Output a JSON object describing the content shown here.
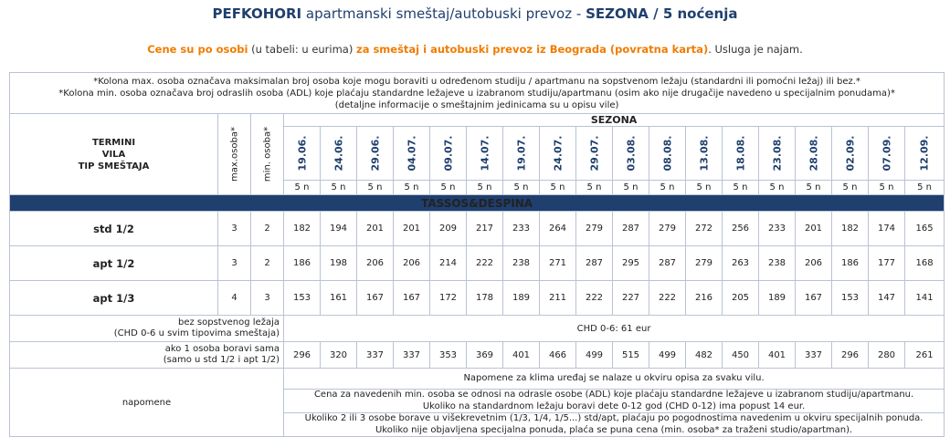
{
  "header": {
    "title_strong": "PEFKOHORI",
    "title_mid": " apartmanski smeštaj/autobuski prevoz - ",
    "title_season": "SEZONA / 5 noćenja",
    "subtitle_part1": "Cene su po osobi",
    "subtitle_part2": " (u tabeli: u eurima) ",
    "subtitle_part3": "za smeštaj i autobuski prevoz iz Beograda (povratna karta)",
    "subtitle_part4": ". Usluga je najam."
  },
  "top_notes": [
    "*Kolona max. osoba označava maksimalan broj osoba koje mogu boraviti u određenom studiju / apartmanu na sopstvenom ležaju (standardni ili pomoćni ležaj) ili bez.*",
    "*Kolona min. osoba označava broj odraslih osoba (ADL) koje plaćaju standardne ležajeve u izabranom studiju/apartmanu (osim ako nije drugačije navedeno u specijalnim ponudama)*",
    "(detaljne informacije o smeštajnim jedinicama su u opisu vile)"
  ],
  "table_header": {
    "label_line1": "TERMINI",
    "label_line2": "VILA",
    "label_line3": "TIP SMEŠTAJA",
    "max_col": "max.osoba*",
    "min_col": "min. osoba*",
    "season": "SEZONA",
    "dates": [
      "19.06.",
      "24.06.",
      "29.06.",
      "04.07.",
      "09.07.",
      "14.07.",
      "19.07.",
      "24.07.",
      "29.07.",
      "03.08.",
      "08.08.",
      "13.08.",
      "18.08.",
      "23.08.",
      "28.08.",
      "02.09.",
      "07.09.",
      "12.09."
    ],
    "nights": [
      "5 n",
      "5 n",
      "5 n",
      "5 n",
      "5 n",
      "5 n",
      "5 n",
      "5 n",
      "5 n",
      "5 n",
      "5 n",
      "5 n",
      "5 n",
      "5 n",
      "5 n",
      "5 n",
      "5 n",
      "5 n"
    ]
  },
  "villa": {
    "name": "TASSOS&DESPINA"
  },
  "rows": [
    {
      "type": "std 1/2",
      "max": "3",
      "min": "2",
      "prices": [
        "182",
        "194",
        "201",
        "201",
        "209",
        "217",
        "233",
        "264",
        "279",
        "287",
        "279",
        "272",
        "256",
        "233",
        "201",
        "182",
        "174",
        "165"
      ]
    },
    {
      "type": "apt 1/2",
      "max": "3",
      "min": "2",
      "prices": [
        "186",
        "198",
        "206",
        "206",
        "214",
        "222",
        "238",
        "271",
        "287",
        "295",
        "287",
        "279",
        "263",
        "238",
        "206",
        "186",
        "177",
        "168"
      ]
    },
    {
      "type": "apt 1/3",
      "max": "4",
      "min": "3",
      "prices": [
        "153",
        "161",
        "167",
        "167",
        "172",
        "178",
        "189",
        "211",
        "222",
        "227",
        "222",
        "216",
        "205",
        "189",
        "167",
        "153",
        "147",
        "141"
      ]
    }
  ],
  "extras": {
    "no_bed_line1": "bez sopstvenog ležaja",
    "no_bed_line2": "(CHD 0-6 u svim tipovima smeštaja)",
    "no_bed_value": "CHD 0-6: 61 eur",
    "single_line1": "ako 1 osoba boravi sama",
    "single_line2": "(samo u std 1/2 i apt 1/2)",
    "single_prices": [
      "296",
      "320",
      "337",
      "337",
      "353",
      "369",
      "401",
      "466",
      "499",
      "515",
      "499",
      "482",
      "450",
      "401",
      "337",
      "296",
      "280",
      "261"
    ]
  },
  "notes": {
    "label": "napomene",
    "n1": "Napomene za klima uređaj se nalaze u okviru opisa za svaku vilu.",
    "n2a": "Cena za  navedenih min. osoba se odnosi na odrasle osobe (ADL) koje plaćaju standardne ležajeve u izabranom studiju/apartmanu.",
    "n2b": "Ukoliko na standardnom ležaju boravi dete 0-12 god (CHD 0-12) ima popust 14 eur.",
    "n3a": "Ukoliko 2 ili 3 osobe borave u višekrevetnim (1/3, 1/4, 1/5...) std/apt, plaćaju po pogodnostima navedenim u okviru specijalnih ponuda.",
    "n3b": "Ukoliko nije objavljena specijalna ponuda, plaća se puna cena (min. osoba* za traženi studio/apartman)."
  },
  "colors": {
    "navy": "#1f3f6e",
    "orange": "#f07c00",
    "border": "#b9c3d6"
  }
}
